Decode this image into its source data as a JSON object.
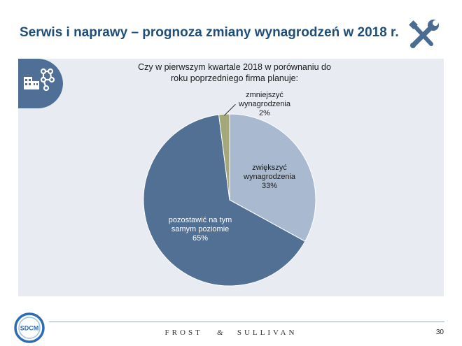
{
  "slide": {
    "title": "Serwis i naprawy – prognoza zmiany wynagrodzeń w 2018 r.",
    "page_number": "30",
    "brand": "FROST & SULLIVAN",
    "brand_parts": [
      "FROST",
      "&",
      "SULLIVAN"
    ],
    "logo_text": "SDCM",
    "icons": {
      "header": "wrench-screwdriver-icon",
      "badge": "building-network-icon"
    },
    "colors": {
      "title": "#1f4e79",
      "panel": "#e8ebf2",
      "badge": "#4f6f96",
      "increase": "#a9bad0",
      "decrease": "#a3a77a",
      "same": "#526f94"
    }
  },
  "chart_data": {
    "type": "pie",
    "title": "Czy w pierwszym kwartale 2018 w porównaniu do roku poprzedniego firma planuje:",
    "title_lines": [
      "Czy w pierwszym kwartale 2018 w porównaniu do",
      "roku poprzedniego firma planuje:"
    ],
    "start": "top, clockwise",
    "slices": [
      {
        "label": "zwiększyć wynagrodzenia",
        "label_lines": [
          "zwiększyć",
          "wynagrodzenia"
        ],
        "value": 33,
        "value_label": "33%",
        "color": "#a9bad0"
      },
      {
        "label": "pozostawić na tym samym poziomie",
        "label_lines": [
          "pozostawić na tym",
          "samym poziomie"
        ],
        "value": 65,
        "value_label": "65%",
        "color": "#526f94"
      },
      {
        "label": "zmniejszyć wynagrodzenia",
        "label_lines": [
          "zmniejszyć",
          "wynagrodzenia"
        ],
        "value": 2,
        "value_label": "2%",
        "color": "#a3a77a"
      }
    ]
  }
}
